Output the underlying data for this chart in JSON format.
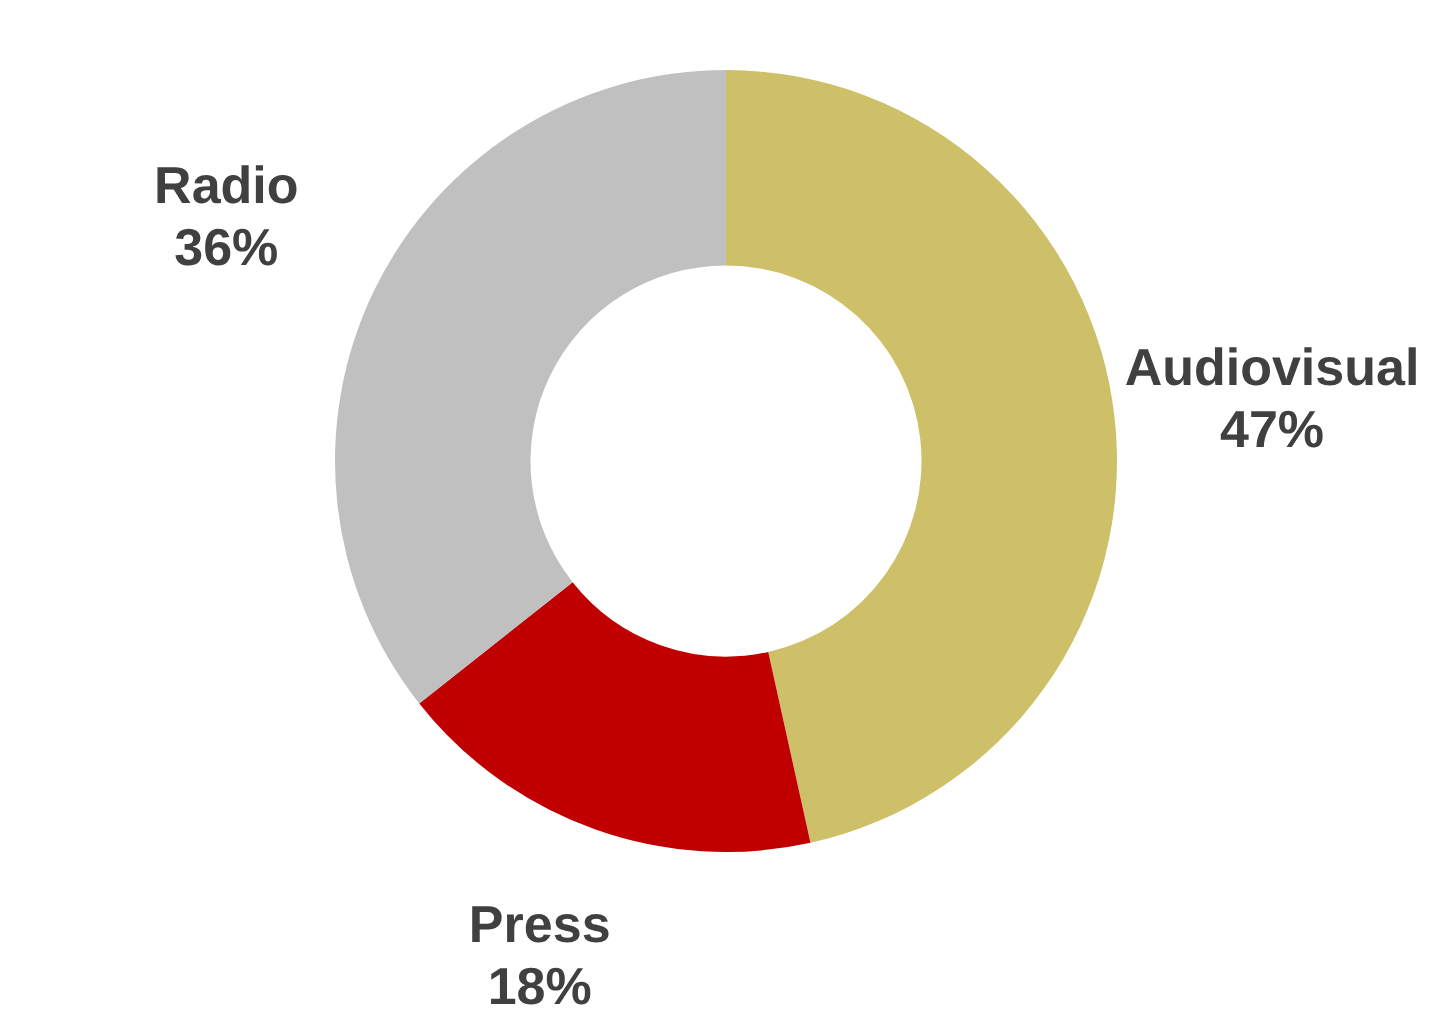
{
  "chart_data": {
    "type": "donut",
    "categories": [
      "Audiovisual",
      "Press",
      "Radio"
    ],
    "values": [
      47,
      18,
      36
    ],
    "colors": [
      "#cdc068",
      "#c00000",
      "#c0c0c0"
    ],
    "value_labels": [
      "47%",
      "18%",
      "36%"
    ],
    "legend": false
  }
}
